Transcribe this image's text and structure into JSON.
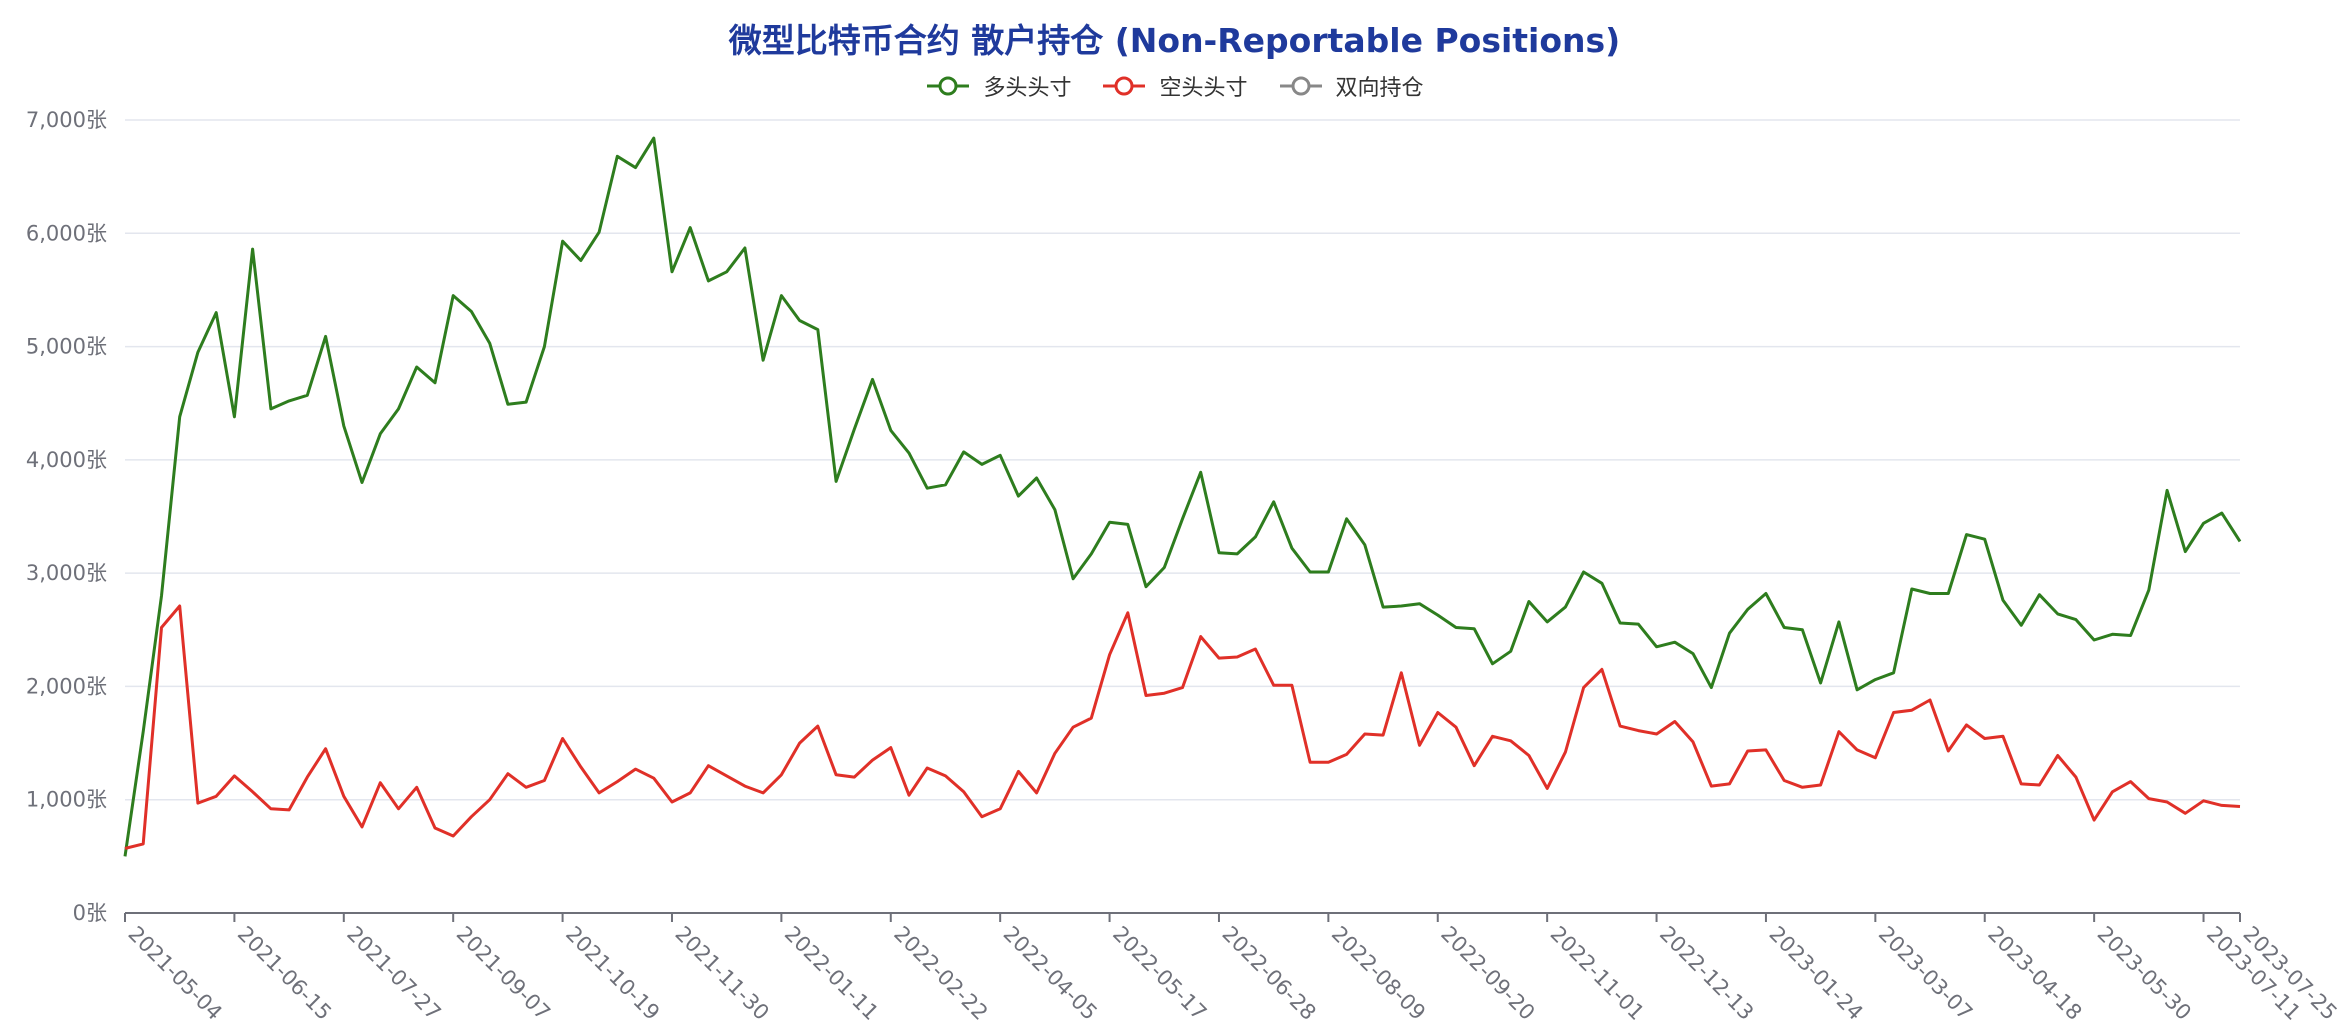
{
  "chart_data": {
    "type": "line",
    "title": "微型比特币合约 散户持仓 (Non-Reportable Positions)",
    "xlabel": "",
    "ylabel": "",
    "ylim": [
      0,
      7000
    ],
    "yticks": [
      0,
      1000,
      2000,
      3000,
      4000,
      5000,
      6000,
      7000
    ],
    "y_unit_suffix": "张",
    "grid": true,
    "legend_position": "top-center",
    "x_tick_labels": [
      "2021-05-04",
      "2021-06-15",
      "2021-07-27",
      "2021-09-07",
      "2021-10-19",
      "2021-11-30",
      "2022-01-11",
      "2022-02-22",
      "2022-04-05",
      "2022-05-17",
      "2022-06-28",
      "2022-08-09",
      "2022-09-20",
      "2022-11-01",
      "2022-12-13",
      "2023-01-24",
      "2023-03-07",
      "2023-04-18",
      "2023-05-30",
      "2023-07-11",
      "2023-07-25"
    ],
    "series": [
      {
        "name": "多头头寸",
        "color": "#2e7d1e",
        "values": [
          500,
          1600,
          2800,
          4380,
          4950,
          5300,
          4380,
          5860,
          4450,
          4520,
          4570,
          5090,
          4300,
          3800,
          4230,
          4450,
          4820,
          4680,
          5450,
          5310,
          5030,
          4490,
          4510,
          5000,
          5930,
          5760,
          6010,
          6680,
          6580,
          6840,
          5660,
          6050,
          5580,
          5660,
          5870,
          4880,
          5450,
          5230,
          5150,
          3810,
          4270,
          4710,
          4260,
          4060,
          3750,
          3780,
          4070,
          3960,
          4040,
          3680,
          3840,
          3560,
          2950,
          3170,
          3450,
          3430,
          2880,
          3050,
          3480,
          3890,
          3180,
          3170,
          3320,
          3630,
          3220,
          3010,
          3010,
          3480,
          3250,
          2700,
          2710,
          2730,
          2630,
          2520,
          2510,
          2200,
          2310,
          2750,
          2570,
          2700,
          3010,
          2910,
          2560,
          2550,
          2350,
          2390,
          2290,
          1990,
          2470,
          2680,
          2820,
          2520,
          2500,
          2030,
          2570,
          1970,
          2060,
          2120,
          2860,
          2820,
          2820,
          3340,
          3300,
          2760,
          2540,
          2810,
          2640,
          2590,
          2410,
          2460,
          2450,
          2850,
          3730,
          3190,
          3440,
          3530,
          3280
        ]
      },
      {
        "name": "空头头寸",
        "color": "#e03028",
        "values": [
          570,
          610,
          2520,
          2710,
          970,
          1030,
          1210,
          1070,
          920,
          910,
          1200,
          1450,
          1030,
          760,
          1150,
          920,
          1110,
          750,
          680,
          850,
          1000,
          1230,
          1110,
          1170,
          1540,
          1290,
          1060,
          1160,
          1270,
          1190,
          980,
          1060,
          1300,
          1210,
          1120,
          1060,
          1220,
          1500,
          1650,
          1220,
          1200,
          1350,
          1460,
          1040,
          1280,
          1210,
          1070,
          850,
          920,
          1250,
          1060,
          1410,
          1640,
          1720,
          2280,
          2650,
          1920,
          1940,
          1990,
          2440,
          2250,
          2260,
          2330,
          2010,
          2010,
          1330,
          1330,
          1400,
          1580,
          1570,
          2120,
          1480,
          1770,
          1640,
          1300,
          1560,
          1520,
          1390,
          1100,
          1420,
          1990,
          2150,
          1650,
          1610,
          1580,
          1690,
          1510,
          1120,
          1140,
          1430,
          1440,
          1170,
          1110,
          1130,
          1600,
          1440,
          1370,
          1770,
          1790,
          1880,
          1430,
          1660,
          1540,
          1560,
          1140,
          1130,
          1390,
          1200,
          820,
          1070,
          1160,
          1010,
          980,
          880,
          990,
          950,
          940
        ]
      },
      {
        "name": "双向持仓",
        "color": "#888888",
        "values": []
      }
    ]
  }
}
